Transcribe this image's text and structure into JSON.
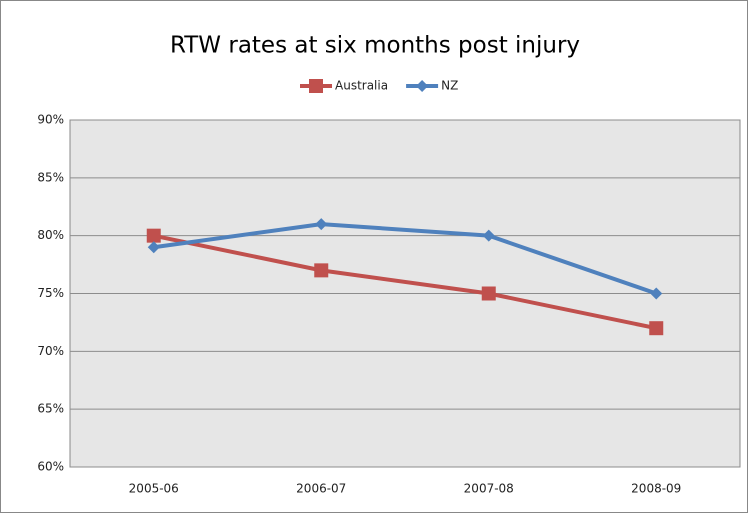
{
  "chart_data": {
    "type": "line",
    "title": "RTW rates at six months post injury",
    "categories": [
      "2005-06",
      "2006-07",
      "2007-08",
      "2008-09"
    ],
    "series": [
      {
        "name": "Australia",
        "color": "#c0504d",
        "marker": "square",
        "values": [
          80,
          77,
          75,
          72
        ]
      },
      {
        "name": "NZ",
        "color": "#4f81bd",
        "marker": "diamond",
        "values": [
          79,
          81,
          80,
          75
        ]
      }
    ],
    "ylim": [
      60,
      90
    ],
    "yticks": [
      {
        "value": 60,
        "label": "60%"
      },
      {
        "value": 65,
        "label": "65%"
      },
      {
        "value": 70,
        "label": "70%"
      },
      {
        "value": 75,
        "label": "75%"
      },
      {
        "value": 80,
        "label": "80%"
      },
      {
        "value": 85,
        "label": "85%"
      },
      {
        "value": 90,
        "label": "90%"
      }
    ],
    "grid": true,
    "legend": "top"
  }
}
